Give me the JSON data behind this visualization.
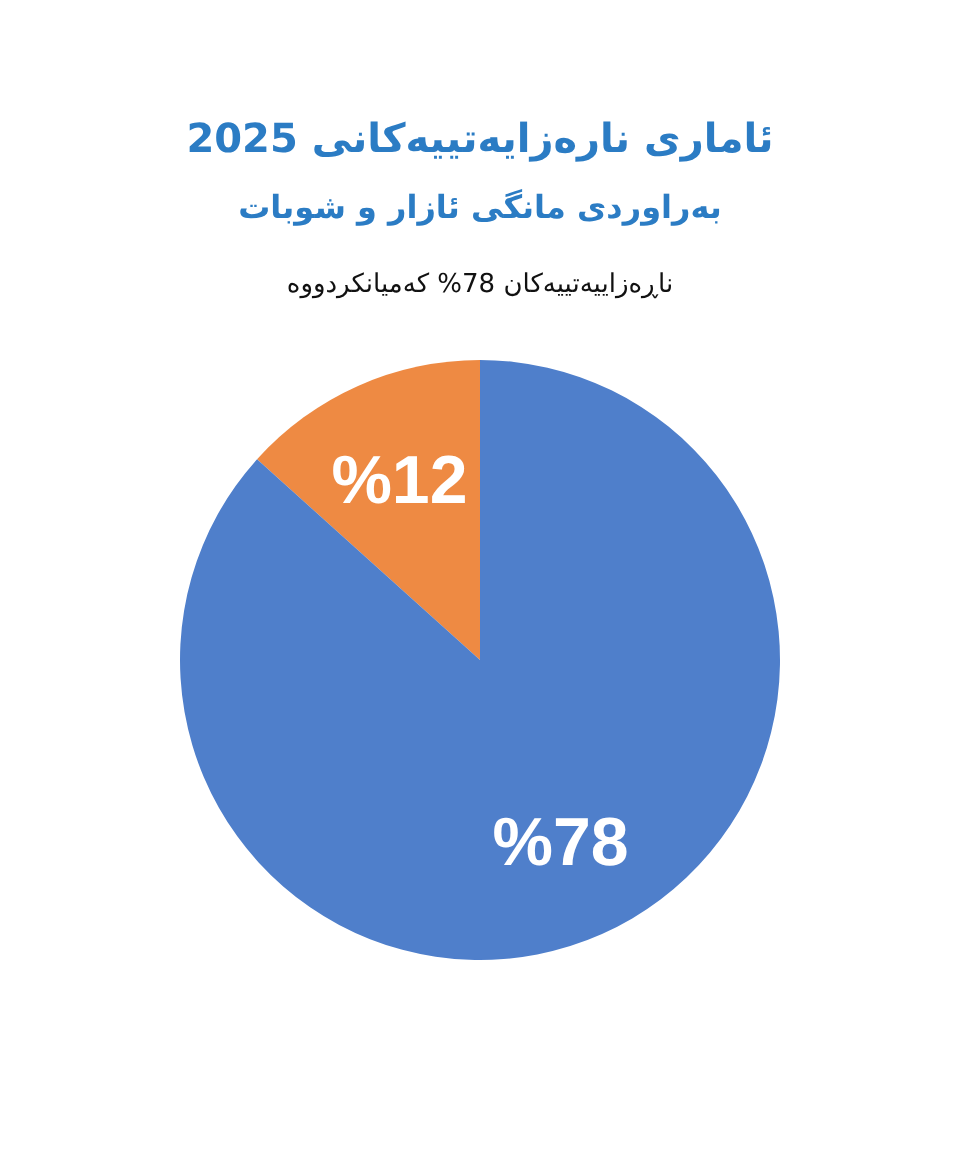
{
  "chart_data": {
    "type": "pie",
    "title": "ئاماری نارەزایەتییەکانی 2025",
    "subtitle": "بەراوردی مانگی ئازار و شوبات",
    "annotations": [
      "ناڕەزاییەتییەکان 78% کەمیانکردووە"
    ],
    "categories": [
      null,
      null
    ],
    "values": [
      12,
      78
    ],
    "colors": [
      "#ee8a43",
      "#4f7fcb"
    ],
    "value_labels": [
      "%12",
      "%78"
    ]
  }
}
